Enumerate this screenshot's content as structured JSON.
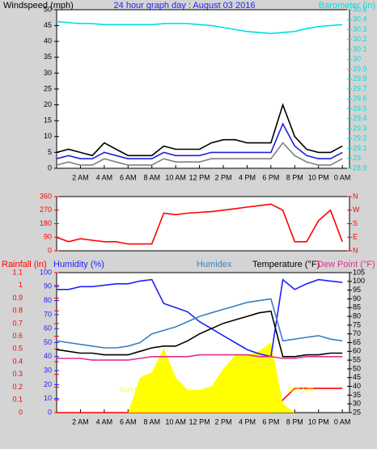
{
  "chart_data": [
    {
      "type": "line",
      "title": "24 hour graph day : August 03 2016",
      "ylabel": "Windspeed (mph)",
      "y2label": "Barometer (in)",
      "ycolor": "#000000",
      "y2color": "#00e0e0",
      "x": [
        0,
        1,
        2,
        3,
        4,
        5,
        6,
        7,
        8,
        9,
        10,
        11,
        12,
        13,
        14,
        15,
        16,
        17,
        18,
        19,
        20,
        21,
        22,
        23,
        24
      ],
      "xlim": [
        0,
        24.6
      ],
      "xticks": [
        {
          "value": 2,
          "label": "2 AM"
        },
        {
          "value": 4,
          "label": "4 AM"
        },
        {
          "value": 6,
          "label": "6 AM"
        },
        {
          "value": 8,
          "label": "8 AM"
        },
        {
          "value": 10,
          "label": "10 AM"
        },
        {
          "value": 12,
          "label": "12 PM"
        },
        {
          "value": 14,
          "label": "2 PM"
        },
        {
          "value": 16,
          "label": "4 PM"
        },
        {
          "value": 18,
          "label": "6 PM"
        },
        {
          "value": 20,
          "label": "8 PM"
        },
        {
          "value": 22,
          "label": "10 PM"
        },
        {
          "value": 24,
          "label": "0 AM"
        }
      ],
      "ylim": [
        0,
        50
      ],
      "yticks": [
        0,
        5,
        10,
        15,
        20,
        25,
        30,
        35,
        40,
        45,
        50
      ],
      "y2lim": [
        28.9,
        30.5
      ],
      "y2ticks": [
        28.9,
        29,
        29.1,
        29.2,
        29.3,
        29.4,
        29.5,
        29.6,
        29.7,
        29.8,
        29.9,
        30,
        30.1,
        30.2,
        30.3,
        30.4,
        30.5
      ],
      "series": [
        {
          "color": "#000000",
          "values": [
            5,
            6,
            5,
            4,
            8,
            6,
            4,
            4,
            4,
            7,
            6,
            6,
            6,
            8,
            9,
            9,
            8,
            8,
            8,
            20,
            10,
            6,
            5,
            5,
            7
          ]
        },
        {
          "color": "#2020e0",
          "values": [
            3,
            4,
            3,
            3,
            5,
            4,
            3,
            3,
            3,
            5,
            4,
            4,
            4,
            5,
            5,
            5,
            5,
            5,
            5,
            14,
            7,
            4,
            3,
            3,
            5
          ]
        },
        {
          "color": "#808080",
          "values": [
            1,
            2,
            1,
            1,
            3,
            2,
            1,
            1,
            1,
            3,
            2,
            2,
            2,
            3,
            3,
            3,
            3,
            3,
            3,
            8,
            4,
            2,
            1,
            1,
            3
          ]
        },
        {
          "color": "#00e0e0",
          "axis": "y2",
          "values": [
            30.38,
            30.37,
            30.36,
            30.36,
            30.35,
            30.35,
            30.35,
            30.35,
            30.35,
            30.36,
            30.36,
            30.36,
            30.35,
            30.34,
            30.32,
            30.3,
            30.28,
            30.27,
            30.26,
            30.27,
            30.28,
            30.31,
            30.33,
            30.34,
            30.35
          ]
        }
      ]
    },
    {
      "type": "line",
      "ycolor": "#ff0000",
      "y2color": "#ff0000",
      "x": [
        0,
        1,
        2,
        3,
        4,
        5,
        6,
        7,
        8,
        9,
        10,
        11,
        12,
        13,
        14,
        15,
        16,
        17,
        18,
        19,
        20,
        21,
        22,
        23,
        24
      ],
      "xlim": [
        0,
        24.6
      ],
      "ylim": [
        0,
        360
      ],
      "yticks": [
        0,
        90,
        180,
        270,
        360
      ],
      "y2lim": [
        0,
        360
      ],
      "y2ticks": [
        {
          "value": 0,
          "label": "N"
        },
        {
          "value": 90,
          "label": "E"
        },
        {
          "value": 180,
          "label": "S"
        },
        {
          "value": 270,
          "label": "W"
        },
        {
          "value": 360,
          "label": "N"
        }
      ],
      "series": [
        {
          "color": "#ff0000",
          "values": [
            90,
            60,
            80,
            70,
            60,
            60,
            45,
            45,
            45,
            250,
            240,
            250,
            255,
            260,
            270,
            280,
            290,
            300,
            310,
            270,
            60,
            60,
            200,
            270,
            60
          ]
        }
      ]
    },
    {
      "type": "line",
      "ycolor": "#2020ff",
      "y2color": "#000000",
      "y3color": "#ff0000",
      "x": [
        0,
        1,
        2,
        3,
        4,
        5,
        6,
        7,
        8,
        9,
        10,
        11,
        12,
        13,
        14,
        15,
        16,
        17,
        18,
        19,
        20,
        21,
        22,
        23,
        24
      ],
      "xlim": [
        0,
        24.6
      ],
      "xticks": [
        {
          "value": 2,
          "label": "2 AM"
        },
        {
          "value": 4,
          "label": "4 AM"
        },
        {
          "value": 6,
          "label": "6 AM"
        },
        {
          "value": 8,
          "label": "8 AM"
        },
        {
          "value": 10,
          "label": "10 AM"
        },
        {
          "value": 12,
          "label": "12 PM"
        },
        {
          "value": 14,
          "label": "2 PM"
        },
        {
          "value": 16,
          "label": "4 PM"
        },
        {
          "value": 18,
          "label": "6 PM"
        },
        {
          "value": 20,
          "label": "8 PM"
        },
        {
          "value": 22,
          "label": "10 PM"
        },
        {
          "value": 24,
          "label": "0 AM"
        }
      ],
      "ylim": [
        0,
        100
      ],
      "yticks": [
        0,
        10,
        20,
        30,
        40,
        50,
        60,
        70,
        80,
        90,
        100
      ],
      "y2lim": [
        25,
        105
      ],
      "y2ticks": [
        25,
        30,
        35,
        40,
        45,
        50,
        55,
        60,
        65,
        70,
        75,
        80,
        85,
        90,
        95,
        100,
        105
      ],
      "y3lim": [
        0,
        1.1
      ],
      "y3ticks": [
        0,
        0.1,
        0.2,
        0.3,
        0.4,
        0.5,
        0.6,
        0.7,
        0.8,
        0.9,
        1,
        1.1
      ],
      "annotations": [
        "Sun Rise",
        "Sun Set"
      ],
      "series": [
        {
          "name": "Rainfall (in)",
          "color": "#ff0000",
          "axis": "y3",
          "values": [
            0,
            0,
            0,
            0,
            0,
            0,
            0,
            0,
            0,
            0,
            0,
            0,
            0,
            0,
            0,
            0,
            0,
            0,
            0,
            0.1,
            0.19,
            0.19,
            0.19,
            0.19,
            0.19
          ]
        },
        {
          "color": "#ffff00",
          "axis": "y2",
          "fill": true,
          "values": [
            25,
            25,
            25,
            25,
            25,
            25,
            25,
            45,
            48,
            62,
            45,
            38,
            38,
            40,
            50,
            58,
            58,
            60,
            65,
            30,
            25,
            25,
            25,
            25,
            25
          ]
        },
        {
          "name": "Humidity (%)",
          "color": "#2020ff",
          "values": [
            88,
            88,
            90,
            90,
            91,
            92,
            92,
            94,
            95,
            78,
            75,
            72,
            65,
            60,
            55,
            50,
            45,
            42,
            40,
            95,
            88,
            92,
            95,
            94,
            93
          ]
        },
        {
          "name": "Humidex",
          "color": "#3a80c0",
          "axis": "y2",
          "values": [
            66,
            65,
            64,
            63,
            62,
            62,
            63,
            65,
            70,
            72,
            74,
            77,
            80,
            82,
            84,
            86,
            88,
            89,
            90,
            66,
            67,
            68,
            69,
            67,
            66
          ]
        },
        {
          "name": "Temperature (°F)",
          "color": "#000000",
          "axis": "y2",
          "values": [
            61,
            60,
            59,
            59,
            58,
            58,
            58,
            60,
            62,
            63,
            63,
            66,
            70,
            73,
            76,
            78,
            80,
            82,
            83,
            57,
            57,
            58,
            58,
            59,
            59
          ]
        },
        {
          "name": "Dew Point (°F)",
          "color": "#e0308a",
          "axis": "y2",
          "values": [
            56,
            56,
            56,
            55,
            55,
            55,
            55,
            56,
            57,
            57,
            57,
            57,
            58,
            58,
            58,
            58,
            58,
            57,
            57,
            56,
            56,
            57,
            57,
            57,
            57
          ]
        }
      ]
    }
  ]
}
